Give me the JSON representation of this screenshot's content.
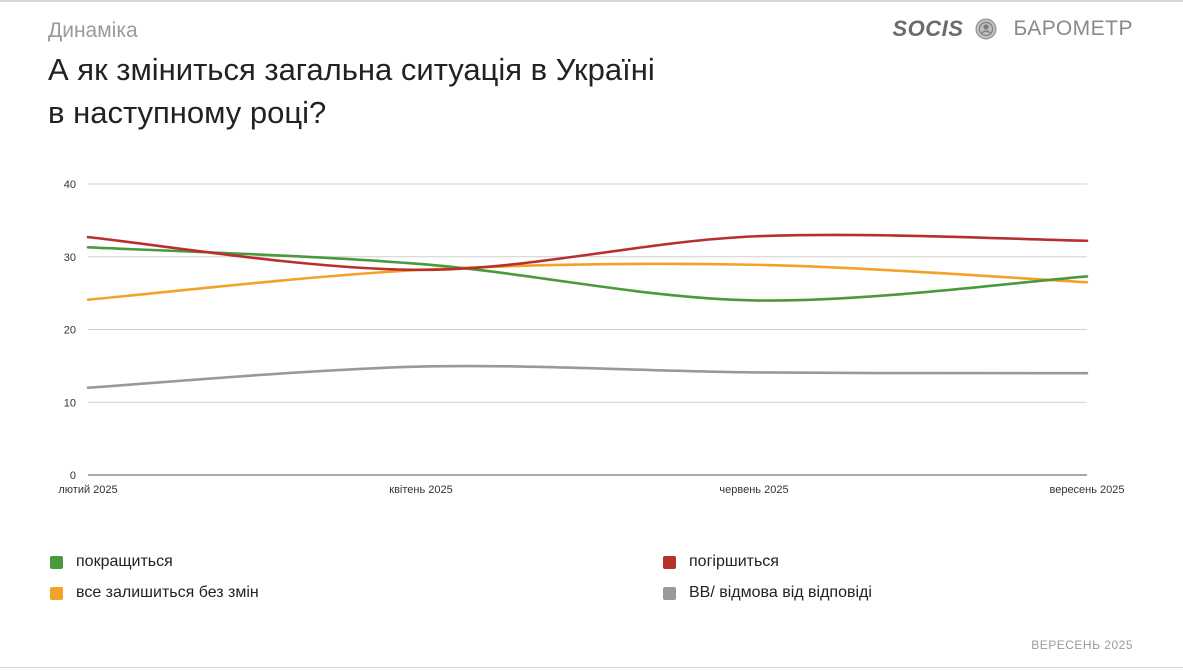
{
  "header": {
    "section": "Динаміка",
    "title_line1": "А як зміниться загальна ситуація в Україні",
    "title_line2": "в наступному році?",
    "brand_logo": "SOCIS",
    "brand_name": "БАРОМЕТР",
    "brand_seal_icon": "seal-icon"
  },
  "footer": {
    "date": "ВЕРЕСЕНЬ 2025"
  },
  "chart_data": {
    "type": "line",
    "title": "",
    "xlabel": "",
    "ylabel": "",
    "ylim": [
      0,
      40
    ],
    "yticks": [
      0,
      10,
      20,
      30,
      40
    ],
    "grid": true,
    "legend_position": "bottom",
    "categories": [
      "лютий 2025",
      "квітень 2025",
      "червень 2025",
      "вересень 2025"
    ],
    "series": [
      {
        "name": "покращиться",
        "color": "#4a9a3c",
        "values": [
          31.3,
          29.0,
          24.0,
          27.3
        ]
      },
      {
        "name": "погіршиться",
        "color": "#b8302e",
        "values": [
          32.7,
          28.2,
          32.8,
          32.2
        ]
      },
      {
        "name": "все залишиться без змін",
        "color": "#f2a228",
        "values": [
          24.1,
          28.2,
          28.9,
          26.5
        ]
      },
      {
        "name": "ВВ/ відмова від відповіді",
        "color": "#999999",
        "values": [
          12.0,
          14.9,
          14.1,
          14.0
        ]
      }
    ]
  }
}
